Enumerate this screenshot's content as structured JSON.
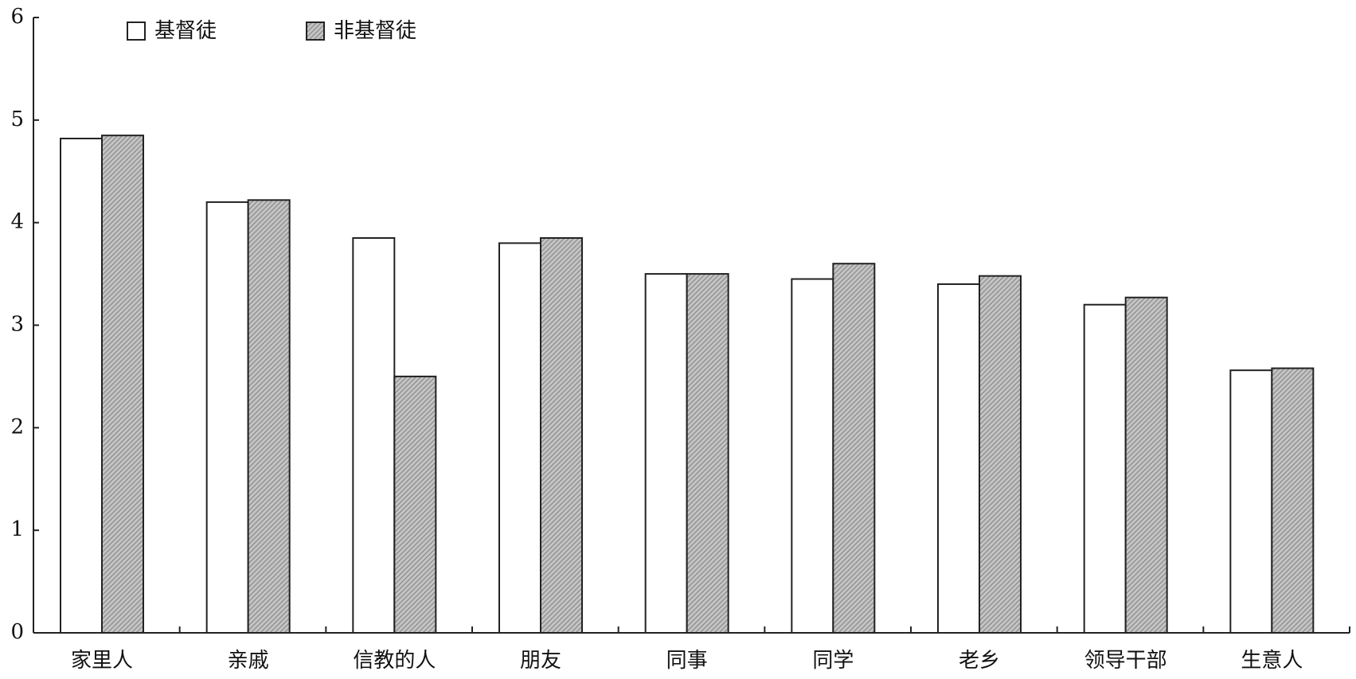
{
  "chart_data": {
    "type": "bar",
    "categories": [
      "家里人",
      "亲戚",
      "信教的人",
      "朋友",
      "同事",
      "同学",
      "老乡",
      "领导干部",
      "生意人"
    ],
    "series": [
      {
        "name": "基督徒",
        "color": "#ffffff",
        "values": [
          4.82,
          4.2,
          3.85,
          3.8,
          3.5,
          3.45,
          3.4,
          3.2,
          2.56
        ]
      },
      {
        "name": "非基督徒",
        "color": "#c4c4c4",
        "values": [
          4.85,
          4.22,
          2.5,
          3.85,
          3.5,
          3.6,
          3.48,
          3.27,
          2.58
        ]
      }
    ],
    "ylim": [
      0,
      6
    ],
    "yticks": [
      0,
      1,
      2,
      3,
      4,
      5,
      6
    ],
    "grid": false,
    "legend": "top-left"
  }
}
